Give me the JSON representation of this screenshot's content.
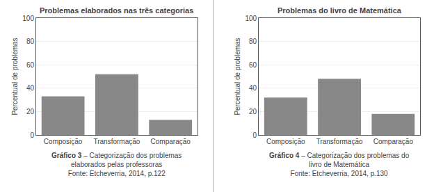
{
  "chart_data": [
    {
      "type": "bar",
      "title": "Problemas elaborados nas três categorias",
      "categories": [
        "Composição",
        "Transformação",
        "Comparação"
      ],
      "values": [
        33,
        52,
        13
      ],
      "color": "#888888",
      "ylabel": "Percentual de problemas",
      "ylim": [
        0,
        100
      ],
      "yticks": [
        0,
        20,
        40,
        60,
        80,
        100
      ],
      "grid": true,
      "caption": [
        "Gráfico 3",
        " – Categorização dos problemas\nelaborados pelas professoras\nFonte: Etcheverria, 2014, p.122"
      ]
    },
    {
      "type": "bar",
      "title": "Problemas do livro de Matemática",
      "categories": [
        "Composição",
        "Transformação",
        "Comparação"
      ],
      "values": [
        32,
        48,
        18
      ],
      "color": "#888888",
      "ylabel": "Percentual de problemas",
      "ylim": [
        0,
        100
      ],
      "yticks": [
        0,
        20,
        40,
        60,
        80,
        100
      ],
      "grid": true,
      "caption": [
        "Gráfico 4",
        " – Categorização dos problemas do\nlivro de Matemática\nFonte: Etcheverria, 2014, p.130"
      ]
    }
  ]
}
